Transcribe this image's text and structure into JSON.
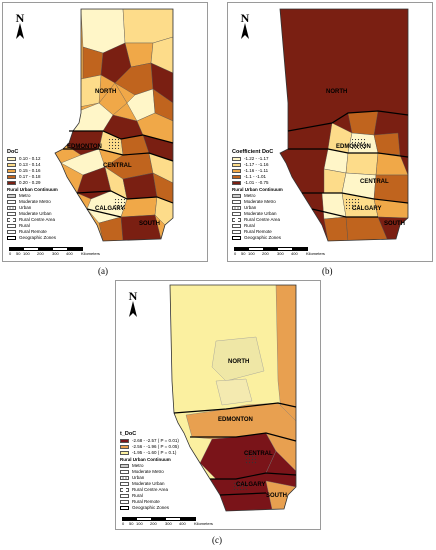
{
  "panels": {
    "a": {
      "caption": "(a)",
      "north": "N",
      "legend_title": "DoC",
      "classes": [
        {
          "label": "0.10 - 0.12",
          "color": "#fff6c8"
        },
        {
          "label": "0.13 - 0.14",
          "color": "#fddc8a"
        },
        {
          "label": "0.15 - 0.16",
          "color": "#f0a848"
        },
        {
          "label": "0.17 - 0.18",
          "color": "#c0641e"
        },
        {
          "label": "0.20 - 0.29",
          "color": "#7a1f12"
        }
      ]
    },
    "b": {
      "caption": "(b)",
      "north": "N",
      "legend_title": "Coefficient  DoC",
      "classes": [
        {
          "label": "-1.22 - -1.17",
          "color": "#fff6c8"
        },
        {
          "label": "-1.17 - -1.16",
          "color": "#fddc8a"
        },
        {
          "label": "-1.16 - -1.11",
          "color": "#f0a848"
        },
        {
          "label": "-1.1 - -1.01",
          "color": "#c0641e"
        },
        {
          "label": "-1.01 - -0.75",
          "color": "#7a1f12"
        }
      ]
    },
    "c": {
      "caption": "(c)",
      "north": "N",
      "legend_title": "t_DoC",
      "classes": [
        {
          "label": "-2.68 - -2.57  ( P = 0.01)",
          "color": "#7a1419"
        },
        {
          "label": "-2.56 - -1.96  ( P = 0.05)",
          "color": "#e8a050"
        },
        {
          "label": "-1.95 - -1.60  ( P = 0.1)",
          "color": "#fbf0a0"
        }
      ]
    }
  },
  "rural_urban": {
    "title": "Rural Urban Continuum",
    "items": [
      "Metro",
      "Moderate Metro",
      "Urban",
      "Moderate Urban",
      "Rural Centre Area",
      "Rural",
      "Rural Remote",
      "Geographic Zones"
    ]
  },
  "zones": [
    "NORTH",
    "EDMONTON",
    "CENTRAL",
    "CALGARY",
    "SOUTH"
  ],
  "scale": {
    "ticks": [
      "0",
      "50",
      "100",
      "200",
      "300",
      "400"
    ],
    "unit": "Kilometers"
  },
  "colors": {
    "border": "#333333",
    "zone_line": "#000000",
    "frame": "#9a9a9a"
  }
}
